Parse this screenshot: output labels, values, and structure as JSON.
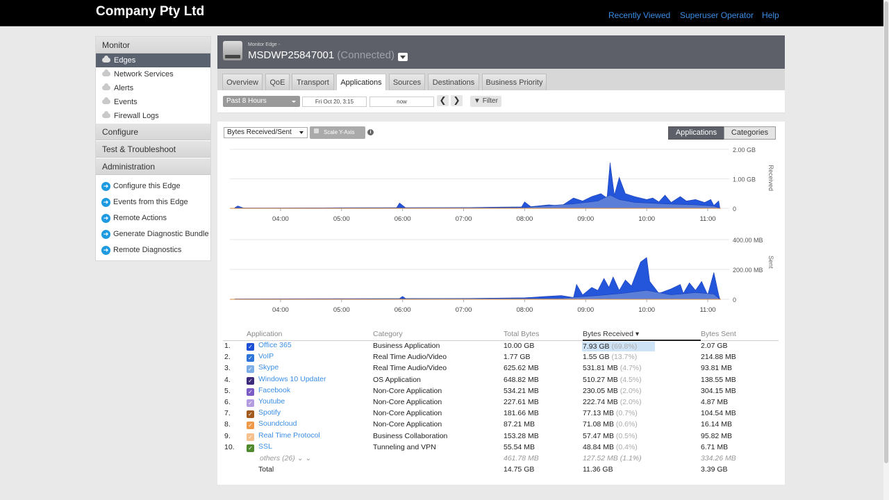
{
  "header": {
    "brand": "Company Pty Ltd",
    "nav": [
      "Recently Viewed",
      "Superuser Operator",
      "Help"
    ]
  },
  "sidebar": {
    "monitor_label": "Monitor",
    "monitor_items": [
      "Edges",
      "Network Services",
      "Alerts",
      "Events",
      "Firewall Logs"
    ],
    "configure_label": "Configure",
    "test_label": "Test & Troubleshoot",
    "admin_label": "Administration",
    "actions": [
      "Configure this Edge",
      "Events from this Edge",
      "Remote Actions",
      "Generate Diagnostic Bundle",
      "Remote Diagnostics"
    ]
  },
  "edge": {
    "subtitle": "Monitor Edge -",
    "name": "MSDWP25847001",
    "status": "(Connected)"
  },
  "tabs": [
    "Overview",
    "QoE",
    "Transport",
    "Applications",
    "Sources",
    "Destinations",
    "Business Priority"
  ],
  "filters": {
    "range": "Past 8 Hours",
    "start": "Fri Oct 20, 3:15",
    "end": "now",
    "prev": "❮",
    "next": "❯",
    "filter_label": "Filter"
  },
  "chart_controls": {
    "metric": "Bytes Received/Sent",
    "scale_label": "Scale Y-Axis",
    "info": "i",
    "seg_apps": "Applications",
    "seg_cats": "Categories"
  },
  "chart_data": [
    {
      "type": "area",
      "ylabel": "Received",
      "yticks": [
        "2.00 GB",
        "1.00 GB",
        "0"
      ],
      "ylim": [
        0,
        2.0
      ],
      "x_ticks": [
        "04:00",
        "05:00",
        "06:00",
        "07:00",
        "08:00",
        "09:00",
        "10:00",
        "11:00"
      ],
      "xlim": [
        3.25,
        11.33
      ],
      "series_total": [
        [
          3.25,
          0.02
        ],
        [
          3.3,
          0.08
        ],
        [
          3.4,
          0.01
        ],
        [
          4.0,
          0.01
        ],
        [
          5.0,
          0.02
        ],
        [
          5.9,
          0.02
        ],
        [
          5.95,
          0.18
        ],
        [
          6.05,
          0.02
        ],
        [
          6.8,
          0.02
        ],
        [
          7.5,
          0.04
        ],
        [
          7.95,
          0.05
        ],
        [
          8.0,
          0.22
        ],
        [
          8.1,
          0.06
        ],
        [
          8.4,
          0.12
        ],
        [
          8.6,
          0.08
        ],
        [
          8.8,
          0.35
        ],
        [
          8.95,
          0.25
        ],
        [
          9.1,
          0.4
        ],
        [
          9.25,
          0.5
        ],
        [
          9.35,
          0.35
        ],
        [
          9.4,
          1.55
        ],
        [
          9.47,
          0.45
        ],
        [
          9.55,
          1.05
        ],
        [
          9.65,
          0.5
        ],
        [
          9.8,
          0.4
        ],
        [
          10.0,
          0.3
        ],
        [
          10.1,
          0.35
        ],
        [
          10.2,
          0.22
        ],
        [
          10.3,
          0.45
        ],
        [
          10.4,
          0.2
        ],
        [
          10.55,
          0.4
        ],
        [
          10.65,
          0.25
        ],
        [
          10.8,
          0.3
        ],
        [
          10.95,
          0.2
        ],
        [
          11.05,
          0.3
        ],
        [
          11.1,
          0.1
        ],
        [
          11.18,
          0.25
        ],
        [
          11.2,
          0.0
        ]
      ],
      "series_inner": [
        [
          3.25,
          0.01
        ],
        [
          8.0,
          0.03
        ],
        [
          8.8,
          0.15
        ],
        [
          9.2,
          0.25
        ],
        [
          9.4,
          0.45
        ],
        [
          9.55,
          0.3
        ],
        [
          9.8,
          0.2
        ],
        [
          10.3,
          0.15
        ],
        [
          10.8,
          0.12
        ],
        [
          11.1,
          0.08
        ],
        [
          11.2,
          0.0
        ]
      ]
    },
    {
      "type": "area",
      "ylabel": "Sent",
      "yticks": [
        "400.00 MB",
        "200.00 MB",
        "0"
      ],
      "ylim": [
        0,
        400
      ],
      "x_ticks": [
        "04:00",
        "05:00",
        "06:00",
        "07:00",
        "08:00",
        "09:00",
        "10:00",
        "11:00"
      ],
      "xlim": [
        3.25,
        11.33
      ],
      "series_total": [
        [
          3.25,
          3
        ],
        [
          5.0,
          4
        ],
        [
          5.95,
          5
        ],
        [
          6.0,
          20
        ],
        [
          6.05,
          5
        ],
        [
          7.0,
          5
        ],
        [
          7.5,
          8
        ],
        [
          8.0,
          10
        ],
        [
          8.3,
          18
        ],
        [
          8.6,
          25
        ],
        [
          8.8,
          12
        ],
        [
          8.85,
          100
        ],
        [
          8.95,
          30
        ],
        [
          9.1,
          80
        ],
        [
          9.2,
          60
        ],
        [
          9.3,
          140
        ],
        [
          9.38,
          80
        ],
        [
          9.45,
          150
        ],
        [
          9.55,
          60
        ],
        [
          9.65,
          130
        ],
        [
          9.75,
          90
        ],
        [
          9.9,
          250
        ],
        [
          10.0,
          280
        ],
        [
          10.05,
          120
        ],
        [
          10.2,
          40
        ],
        [
          10.4,
          70
        ],
        [
          10.55,
          100
        ],
        [
          10.6,
          40
        ],
        [
          10.7,
          110
        ],
        [
          10.8,
          60
        ],
        [
          10.9,
          120
        ],
        [
          11.0,
          30
        ],
        [
          11.1,
          180
        ],
        [
          11.18,
          30
        ],
        [
          11.2,
          0
        ]
      ],
      "series_inner": [
        [
          3.25,
          1
        ],
        [
          8.6,
          8
        ],
        [
          9.2,
          25
        ],
        [
          9.6,
          40
        ],
        [
          10.0,
          60
        ],
        [
          10.4,
          30
        ],
        [
          10.8,
          45
        ],
        [
          11.1,
          35
        ],
        [
          11.2,
          0
        ]
      ]
    }
  ],
  "table": {
    "headers": [
      "Application",
      "Category",
      "Total Bytes",
      "Bytes Received",
      "Bytes Sent"
    ],
    "rows": [
      {
        "idx": "1.",
        "app": "Office 365",
        "category": "Business Application",
        "total": "10.00 GB",
        "recv": "7.93 GB",
        "recv_pct": "(69.8%)",
        "sent": "2.07 GB",
        "color": "#1c4fd6"
      },
      {
        "idx": "2.",
        "app": "VoIP",
        "category": "Real Time Audio/Video",
        "total": "1.77 GB",
        "recv": "1.55 GB",
        "recv_pct": "(13.7%)",
        "sent": "214.88 MB",
        "color": "#2f74d9"
      },
      {
        "idx": "3.",
        "app": "Skype",
        "category": "Real Time Audio/Video",
        "total": "625.62 MB",
        "recv": "531.81 MB",
        "recv_pct": "(4.7%)",
        "sent": "93.81 MB",
        "color": "#7eaee8"
      },
      {
        "idx": "4.",
        "app": "Windows 10 Updater",
        "category": "OS Application",
        "total": "648.82 MB",
        "recv": "510.27 MB",
        "recv_pct": "(4.5%)",
        "sent": "138.55 MB",
        "color": "#3b2a7a"
      },
      {
        "idx": "5.",
        "app": "Facebook",
        "category": "Non-Core Application",
        "total": "534.21 MB",
        "recv": "230.05 MB",
        "recv_pct": "(2.0%)",
        "sent": "304.15 MB",
        "color": "#7b5cc4"
      },
      {
        "idx": "6.",
        "app": "Youtube",
        "category": "Non-Core Application",
        "total": "227.61 MB",
        "recv": "222.74 MB",
        "recv_pct": "(2.0%)",
        "sent": "4.87 MB",
        "color": "#b39de0"
      },
      {
        "idx": "7.",
        "app": "Spotify",
        "category": "Non-Core Application",
        "total": "181.66 MB",
        "recv": "77.13 MB",
        "recv_pct": "(0.7%)",
        "sent": "104.54 MB",
        "color": "#a35a1f"
      },
      {
        "idx": "8.",
        "app": "Soundcloud",
        "category": "Non-Core Application",
        "total": "87.21 MB",
        "recv": "71.08 MB",
        "recv_pct": "(0.6%)",
        "sent": "16.14 MB",
        "color": "#ee9a4a"
      },
      {
        "idx": "9.",
        "app": "Real Time Protocol",
        "category": "Business Collaboration",
        "total": "153.28 MB",
        "recv": "57.47 MB",
        "recv_pct": "(0.5%)",
        "sent": "95.82 MB",
        "color": "#f6c08c"
      },
      {
        "idx": "10.",
        "app": "SSL",
        "category": "Tunneling and VPN",
        "total": "55.54 MB",
        "recv": "48.84 MB",
        "recv_pct": "(0.4%)",
        "sent": "6.71 MB",
        "color": "#4f8a2c"
      }
    ],
    "others": {
      "label": "others (26) ⌄ ⌄",
      "total": "461.78 MB",
      "recv": "127.52 MB",
      "recv_pct": "(1.1%)",
      "sent": "334.26 MB"
    },
    "totals": {
      "label": "Total",
      "total": "14.75 GB",
      "recv": "11.36 GB",
      "sent": "3.39 GB"
    },
    "highlight_fraction": 0.698
  }
}
